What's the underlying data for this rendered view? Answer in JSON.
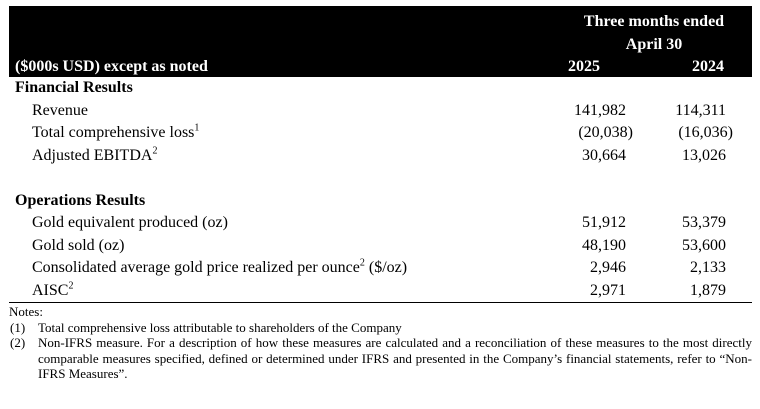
{
  "header": {
    "period_line1": "Three months ended",
    "period_line2": "April 30",
    "units_label": "($000s USD) except as noted",
    "col_2025": "2025",
    "col_2024": "2024"
  },
  "financial_results": {
    "title": "Financial Results",
    "rows": [
      {
        "label": "Revenue",
        "sup": "",
        "v2025": "141,982",
        "v2024": "114,311"
      },
      {
        "label": "Total comprehensive loss",
        "sup": "1",
        "v2025": "(20,038)",
        "v2024": "(16,036)"
      },
      {
        "label": "Adjusted EBITDA",
        "sup": "2",
        "v2025": "30,664",
        "v2024": "13,026"
      }
    ]
  },
  "operations_results": {
    "title": "Operations Results",
    "rows": [
      {
        "label": "Gold equivalent produced (oz)",
        "v2025": "51,912",
        "v2024": "53,379"
      },
      {
        "label": "Gold sold (oz)",
        "v2025": "48,190",
        "v2024": "53,600"
      },
      {
        "label_before": "Consolidated average gold price realized per ounce",
        "sup": "2",
        "label_after": " ($/oz)",
        "v2025": "2,946",
        "v2024": "2,133"
      },
      {
        "label": "AISC",
        "sup": "2",
        "v2025": "2,971",
        "v2024": "1,879"
      }
    ]
  },
  "notes": {
    "title": "Notes:",
    "items": [
      {
        "num": "(1)",
        "text": "Total comprehensive loss attributable to shareholders of the Company"
      },
      {
        "num": "(2)",
        "text": "Non-IFRS measure. For a description of how these measures are calculated and a reconciliation of these measures to the most directly comparable measures specified, defined or determined under IFRS and presented in the Company’s financial statements, refer to “Non-IFRS Measures”."
      }
    ]
  }
}
